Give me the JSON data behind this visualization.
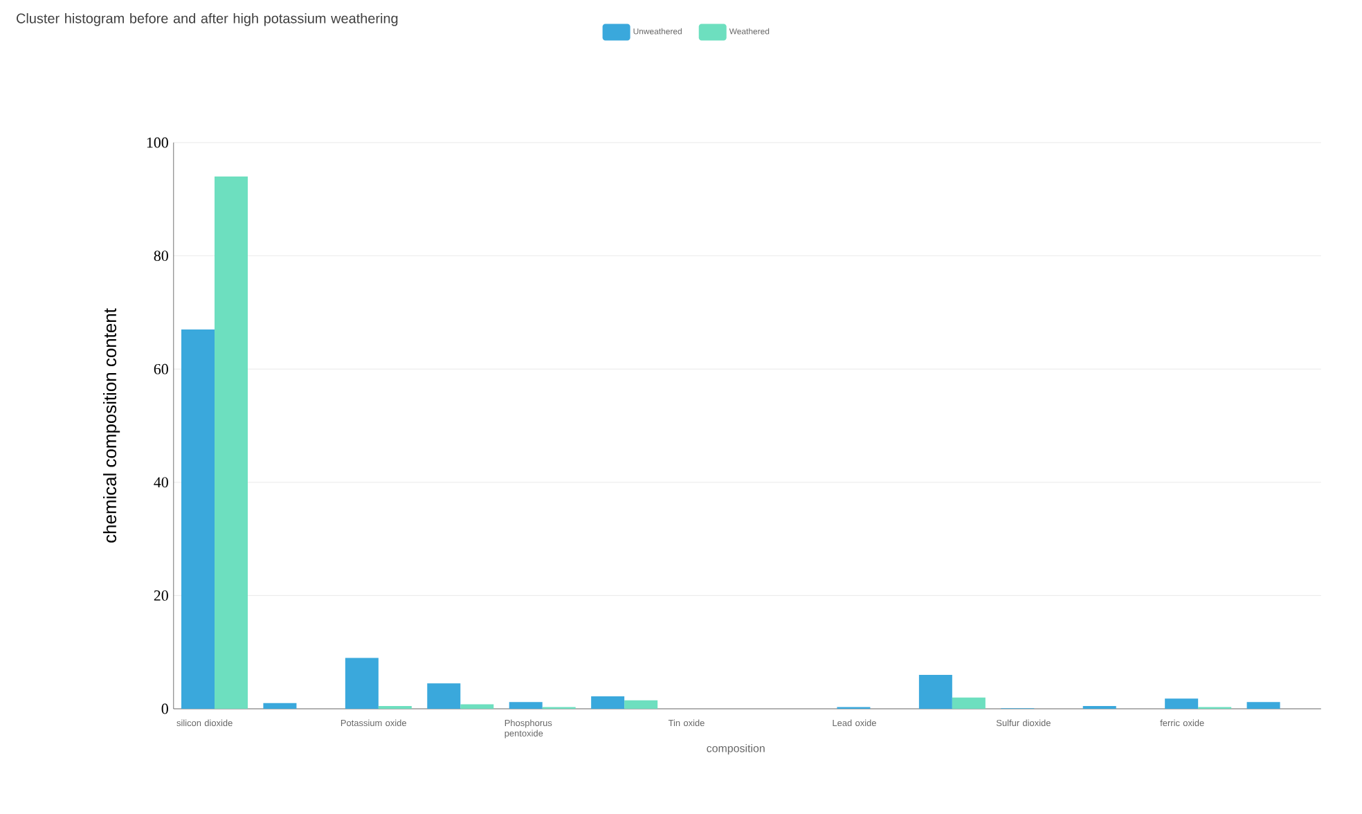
{
  "chart_data": {
    "type": "bar",
    "title": "Cluster histogram before and after high potassium weathering",
    "xlabel": "composition",
    "ylabel": "chemical composition content",
    "categories": [
      "silicon dioxide",
      null,
      "Potassium oxide",
      null,
      "Phosphorus pentoxide",
      null,
      "Tin oxide",
      null,
      "Lead oxide",
      null,
      "Sulfur dioxide",
      null,
      "ferric oxide",
      null
    ],
    "series": [
      {
        "name": "Unweathered",
        "color": "#3aa8dc",
        "values": [
          67,
          1,
          9,
          4.5,
          1.2,
          2.2,
          0,
          0,
          0.3,
          6,
          0.1,
          0.5,
          1.8,
          1.2
        ]
      },
      {
        "name": "Weathered",
        "color": "#6ddfbf",
        "values": [
          94,
          0,
          0.5,
          0.8,
          0.3,
          1.5,
          0,
          0,
          0,
          2,
          0,
          0,
          0.3,
          0
        ]
      }
    ],
    "ylim": [
      0,
      100
    ],
    "yticks": [
      0,
      20,
      40,
      60,
      80,
      100
    ],
    "grid": "y",
    "legend": "top"
  }
}
